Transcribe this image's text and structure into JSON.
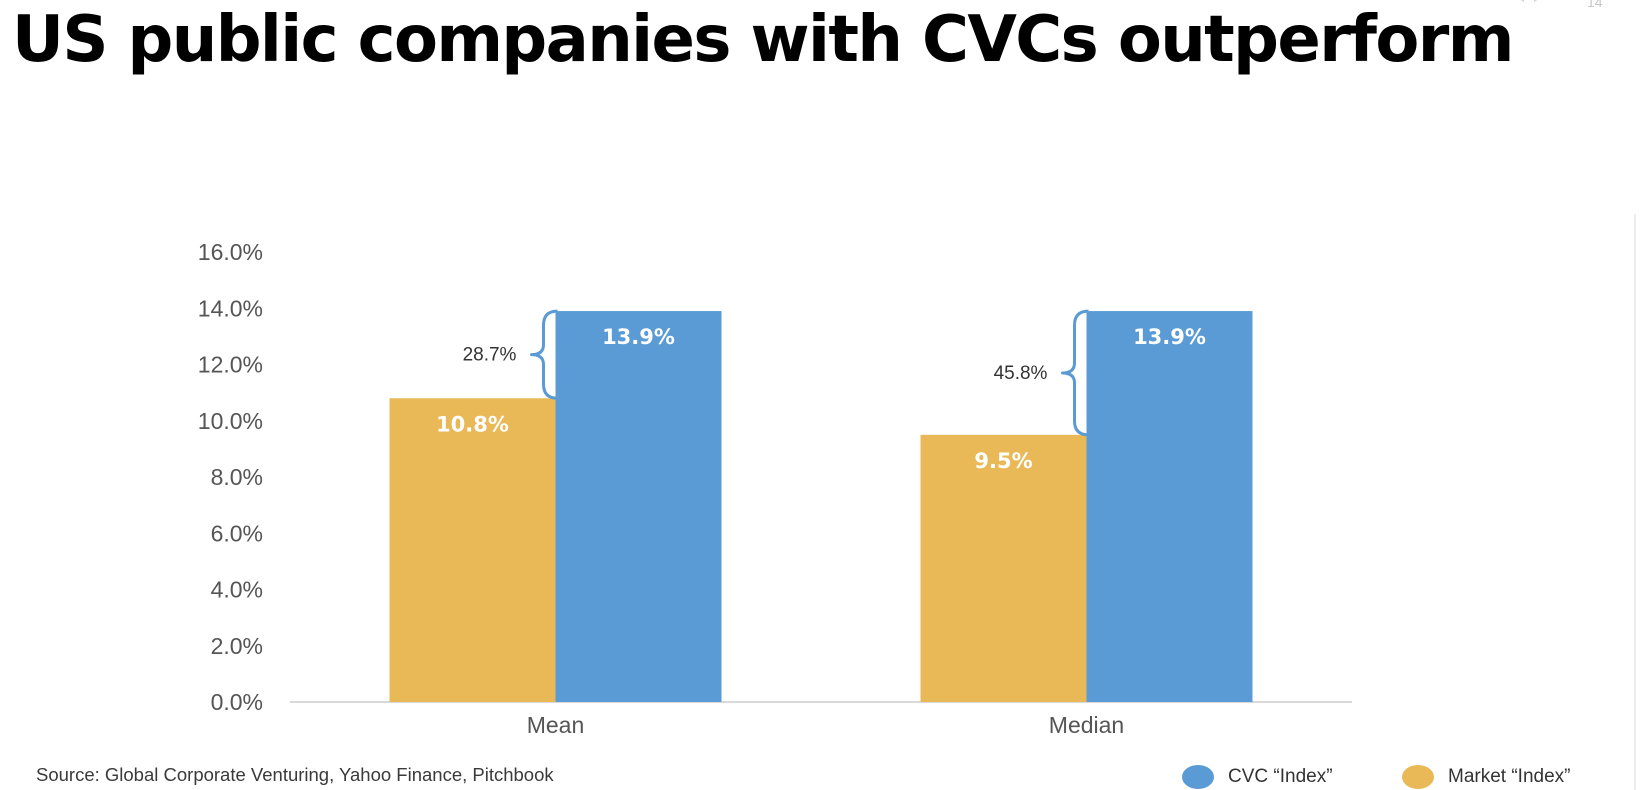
{
  "page": {
    "title": "US public companies with CVCs outperform",
    "slide_number": "14",
    "source": "Source:  Global Corporate Venturing, Yahoo Finance, Pitchbook"
  },
  "legend": [
    {
      "label": "CVC “Index”",
      "color": "#5b9bd5"
    },
    {
      "label": "Market “Index”",
      "color": "#e9b957"
    }
  ],
  "chart_data": {
    "type": "bar",
    "title": "",
    "xlabel": "",
    "ylabel": "",
    "categories": [
      "Mean",
      "Median"
    ],
    "ylim": [
      0,
      16
    ],
    "yticks": [
      "0.0%",
      "2.0%",
      "4.0%",
      "6.0%",
      "8.0%",
      "10.0%",
      "12.0%",
      "14.0%",
      "16.0%"
    ],
    "series": [
      {
        "name": "Market “Index”",
        "color": "#e9b957",
        "values": [
          10.8,
          9.5
        ],
        "labels": [
          "10.8%",
          "9.5%"
        ]
      },
      {
        "name": "CVC “Index”",
        "color": "#5b9bd5",
        "values": [
          13.9,
          13.9
        ],
        "labels": [
          "13.9%",
          "13.9%"
        ]
      }
    ],
    "annotations": [
      {
        "category": "Mean",
        "text": "28.7%"
      },
      {
        "category": "Median",
        "text": "45.8%"
      }
    ],
    "grid": false,
    "legend_position": "bottom-right"
  }
}
